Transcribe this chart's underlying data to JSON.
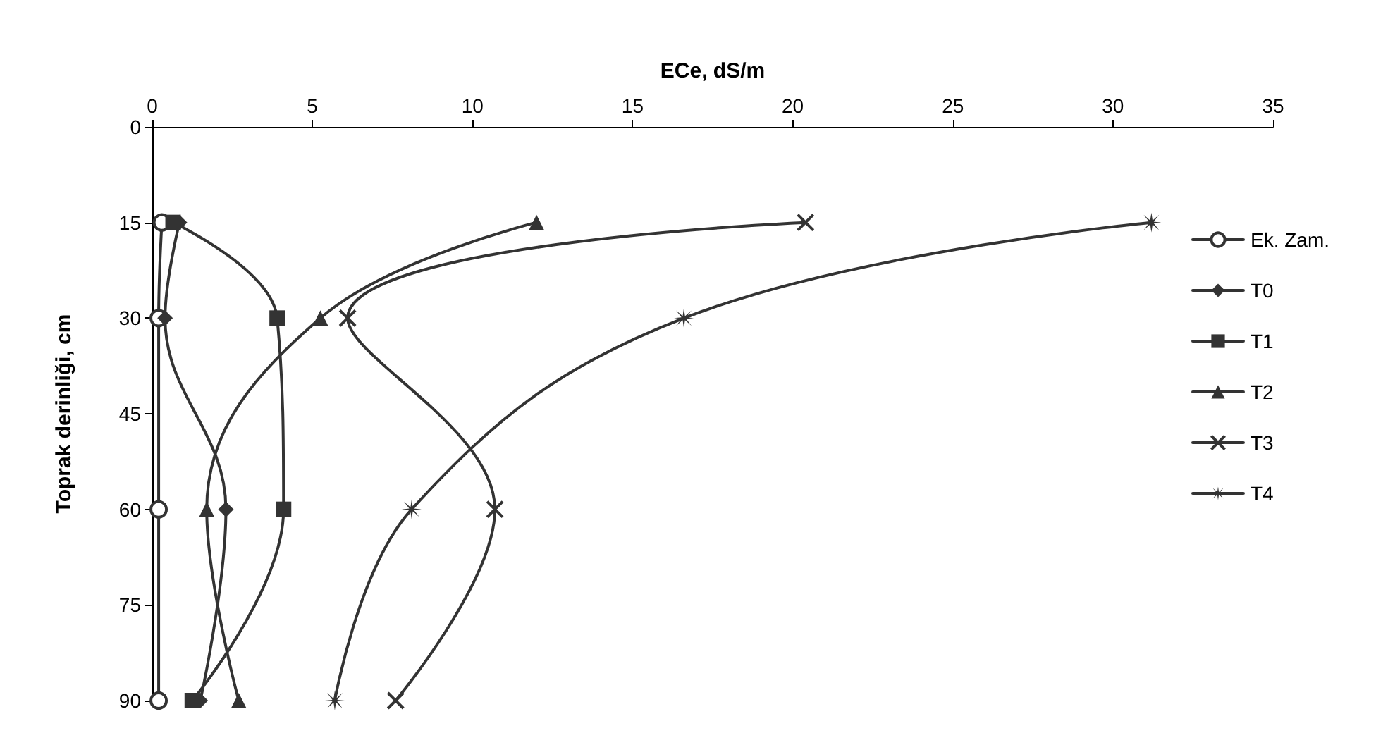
{
  "chart_data": {
    "type": "line",
    "xlabel": "ECe, dS/m",
    "ylabel": "Toprak derinliği, cm",
    "xlim": [
      0,
      35
    ],
    "xticks": [
      0,
      5,
      10,
      15,
      20,
      25,
      30,
      35
    ],
    "ylim": [
      90,
      0
    ],
    "yticks": [
      0,
      15,
      30,
      45,
      60,
      75,
      90
    ],
    "grid": false,
    "legend": "right",
    "line_style": "solid",
    "series": [
      {
        "name": "Ek. Zam.",
        "color": "#333333",
        "marker": "circle",
        "x": [
          0.3,
          0.2,
          0.2,
          0.2
        ],
        "values": [
          15,
          30,
          60,
          90
        ]
      },
      {
        "name": "T0",
        "color": "#333333",
        "marker": "diamond",
        "x": [
          0.85,
          0.4,
          2.3,
          1.5
        ],
        "values": [
          15,
          30,
          60,
          90
        ]
      },
      {
        "name": "T1",
        "color": "#333333",
        "marker": "square",
        "x": [
          0.65,
          3.9,
          4.1,
          1.25
        ],
        "values": [
          15,
          30,
          60,
          90
        ]
      },
      {
        "name": "T2",
        "color": "#333333",
        "marker": "triangle",
        "x": [
          12.0,
          5.25,
          1.7,
          2.7
        ],
        "values": [
          15,
          30,
          60,
          90
        ]
      },
      {
        "name": "T3",
        "color": "#333333",
        "marker": "cross",
        "x": [
          20.4,
          6.1,
          10.7,
          7.6
        ],
        "values": [
          15,
          30,
          60,
          90
        ]
      },
      {
        "name": "T4",
        "color": "#333333",
        "marker": "star",
        "x": [
          31.2,
          16.6,
          8.1,
          5.7
        ],
        "values": [
          15,
          30,
          60,
          90
        ]
      }
    ]
  }
}
